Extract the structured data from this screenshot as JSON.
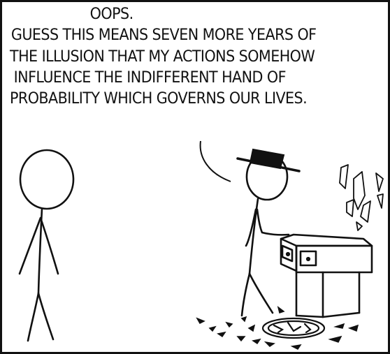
{
  "speech": {
    "exclamation": "OOPS.",
    "lines": [
      "GUESS THIS MEANS SEVEN MORE YEARS OF",
      "THE ILLUSION THAT MY ACTIONS SOMEHOW",
      "INFLUENCE THE INDIFFERENT HAND OF",
      "PROBABILITY WHICH GOVERNS OUR LIVES."
    ]
  },
  "colors": {
    "ink": "#111111",
    "background": "#ffffff"
  }
}
